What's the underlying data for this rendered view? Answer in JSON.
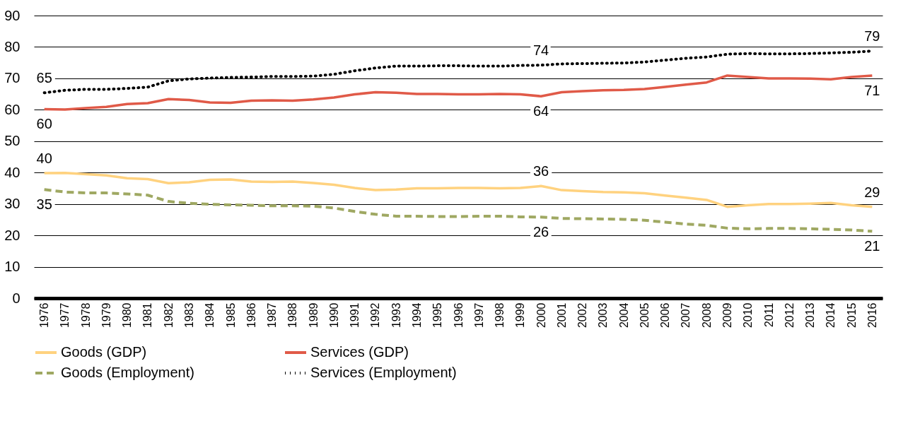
{
  "chart_data": {
    "type": "line",
    "categories": [
      "1976",
      "1977",
      "1978",
      "1979",
      "1980",
      "1981",
      "1982",
      "1983",
      "1984",
      "1985",
      "1986",
      "1987",
      "1988",
      "1989",
      "1990",
      "1991",
      "1992",
      "1993",
      "1994",
      "1995",
      "1996",
      "1997",
      "1998",
      "1999",
      "2000",
      "2001",
      "2002",
      "2003",
      "2004",
      "2005",
      "2006",
      "2007",
      "2008",
      "2009",
      "2010",
      "2011",
      "2012",
      "2013",
      "2014",
      "2015",
      "2016"
    ],
    "series": [
      {
        "name": "Goods (GDP)",
        "color": "#ffd27f",
        "line_style": "solid",
        "values": [
          39.8,
          39.9,
          39.5,
          39.1,
          38.2,
          37.9,
          36.6,
          36.9,
          37.7,
          37.8,
          37.1,
          37.0,
          37.1,
          36.7,
          36.1,
          35.1,
          34.4,
          34.6,
          35.0,
          35.0,
          35.1,
          35.1,
          35.0,
          35.1,
          35.7,
          34.4,
          34.1,
          33.8,
          33.7,
          33.4,
          32.7,
          32.0,
          31.3,
          29.1,
          29.6,
          30.0,
          30.0,
          30.1,
          30.3,
          29.6,
          29.1
        ]
      },
      {
        "name": "Services (GDP)",
        "color": "#e05a48",
        "line_style": "solid",
        "values": [
          60.2,
          60.1,
          60.5,
          60.9,
          61.8,
          62.1,
          63.4,
          63.1,
          62.3,
          62.2,
          62.9,
          63.0,
          62.9,
          63.3,
          63.9,
          64.9,
          65.6,
          65.4,
          65.0,
          65.0,
          64.9,
          64.9,
          65.0,
          64.9,
          64.3,
          65.6,
          65.9,
          66.2,
          66.3,
          66.6,
          67.3,
          68.0,
          68.7,
          70.9,
          70.4,
          70.0,
          70.0,
          69.9,
          69.7,
          70.4,
          70.9
        ]
      },
      {
        "name": "Goods (Employment)",
        "color": "#9fa862",
        "line_style": "dashed",
        "values": [
          34.6,
          33.8,
          33.5,
          33.5,
          33.2,
          32.8,
          30.8,
          30.2,
          29.9,
          29.7,
          29.6,
          29.4,
          29.4,
          29.3,
          28.7,
          27.6,
          26.7,
          26.1,
          26.1,
          26.0,
          26.0,
          26.1,
          26.1,
          25.9,
          25.8,
          25.4,
          25.3,
          25.2,
          25.1,
          24.8,
          24.2,
          23.6,
          23.2,
          22.3,
          22.1,
          22.2,
          22.2,
          22.1,
          21.9,
          21.7,
          21.3
        ]
      },
      {
        "name": "Services (Employment)",
        "color": "#000000",
        "line_style": "dotted",
        "values": [
          65.4,
          66.2,
          66.5,
          66.5,
          66.8,
          67.2,
          69.2,
          69.8,
          70.1,
          70.3,
          70.4,
          70.6,
          70.6,
          70.7,
          71.3,
          72.4,
          73.3,
          73.9,
          73.9,
          74.0,
          74.0,
          73.9,
          73.9,
          74.1,
          74.2,
          74.6,
          74.7,
          74.8,
          74.9,
          75.2,
          75.8,
          76.4,
          76.8,
          77.7,
          77.9,
          77.8,
          77.8,
          77.9,
          78.1,
          78.3,
          78.7
        ]
      }
    ],
    "ylim": [
      0,
      90
    ],
    "yticks": [
      0,
      10,
      20,
      30,
      40,
      50,
      60,
      70,
      80,
      90
    ],
    "grid": "y",
    "legend": "bottom",
    "annotations": [
      {
        "text": "65",
        "x": "1976",
        "y": 65.4
      },
      {
        "text": "60",
        "x": "1976",
        "y": 60.2
      },
      {
        "text": "74",
        "x": "2000",
        "y": 74.2
      },
      {
        "text": "64",
        "x": "2000",
        "y": 64.3
      },
      {
        "text": "79",
        "x": "2016",
        "y": 78.7
      },
      {
        "text": "71",
        "x": "2016",
        "y": 70.9
      },
      {
        "text": "40",
        "x": "1976",
        "y": 39.8
      },
      {
        "text": "35",
        "x": "1976",
        "y": 34.6
      },
      {
        "text": "36",
        "x": "2000",
        "y": 35.7
      },
      {
        "text": "26",
        "x": "2000",
        "y": 25.8
      },
      {
        "text": "29",
        "x": "2016",
        "y": 29.1
      },
      {
        "text": "21",
        "x": "2016",
        "y": 21.3
      }
    ]
  }
}
